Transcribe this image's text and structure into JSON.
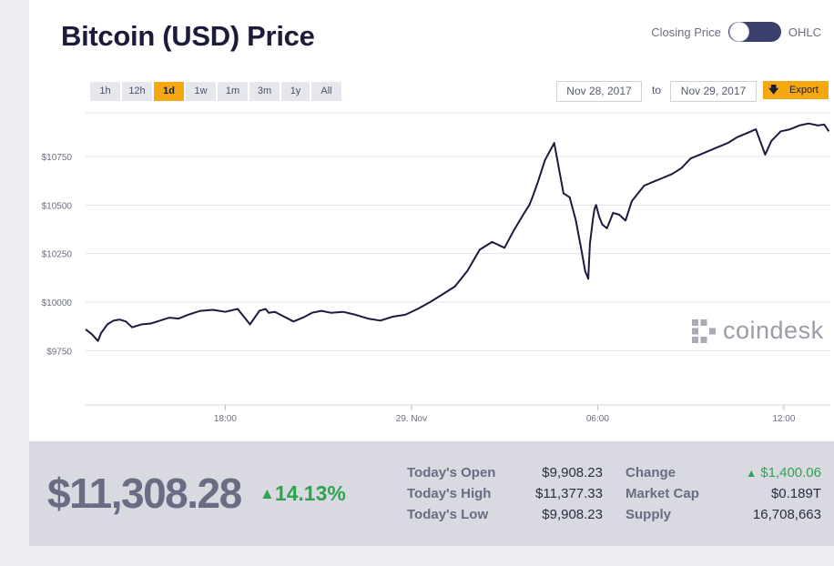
{
  "title": "Bitcoin (USD) Price",
  "toggle": {
    "left_label": "Closing Price",
    "right_label": "OHLC"
  },
  "ranges": [
    "1h",
    "12h",
    "1d",
    "1w",
    "1m",
    "3m",
    "1y",
    "All"
  ],
  "active_range": "1d",
  "date_from": "Nov 28, 2017",
  "date_to_label": "to",
  "date_to": "Nov 29, 2017",
  "export_label": "Export",
  "watermark": "coindesk",
  "colors": {
    "accent": "#f5a70f",
    "line": "#1a1b3d",
    "positive": "#2ea44f"
  },
  "chart_data": {
    "type": "line",
    "y_ticks": [
      "$9750",
      "$10000",
      "$10250",
      "$10500",
      "$10750"
    ],
    "y_tick_values": [
      9750,
      10000,
      10250,
      10500,
      10750
    ],
    "x_ticks": [
      "18:00",
      "29. Nov",
      "06:00",
      "12:00"
    ],
    "x_tick_hours": [
      18,
      24,
      30,
      36
    ],
    "x_range_hours": [
      13.5,
      37.5
    ],
    "ylim": [
      9500,
      11000
    ],
    "series": [
      {
        "x": [
          13.5,
          13.7,
          13.9,
          14.0,
          14.2,
          14.4,
          14.6,
          14.8,
          15.0,
          15.3,
          15.6,
          15.9,
          16.2,
          16.5,
          16.8,
          17.2,
          17.6,
          18.0,
          18.4,
          18.8,
          19.1,
          19.3,
          19.4,
          19.6,
          19.9,
          20.2,
          20.5,
          20.8,
          21.1,
          21.4,
          21.8,
          22.2,
          22.6,
          23.0,
          23.4,
          23.8,
          24.2,
          24.6,
          25.0,
          25.4,
          25.8,
          26.2,
          26.6,
          27.0,
          27.3,
          27.6,
          27.8,
          27.9,
          28.1,
          28.3,
          28.6,
          28.9,
          29.1,
          29.3,
          29.5,
          29.6,
          29.7,
          29.75,
          29.85,
          29.9,
          29.95,
          30.05,
          30.15,
          30.3,
          30.5,
          30.7,
          30.9,
          31.1,
          31.3,
          31.5,
          31.8,
          32.1,
          32.4,
          32.7,
          33.0,
          33.3,
          33.6,
          33.9,
          34.2,
          34.5,
          34.8,
          35.1,
          35.4,
          35.6,
          35.9,
          36.2,
          36.5,
          36.8,
          37.1,
          37.3,
          37.45
        ],
        "y": [
          9860,
          9835,
          9800,
          9840,
          9885,
          9905,
          9910,
          9900,
          9870,
          9885,
          9890,
          9905,
          9920,
          9915,
          9935,
          9955,
          9960,
          9950,
          9965,
          9885,
          9955,
          9965,
          9945,
          9950,
          9925,
          9900,
          9920,
          9945,
          9955,
          9945,
          9950,
          9935,
          9915,
          9905,
          9925,
          9935,
          9965,
          10000,
          10040,
          10080,
          10160,
          10270,
          10310,
          10280,
          10370,
          10450,
          10500,
          10540,
          10630,
          10730,
          10820,
          10560,
          10540,
          10420,
          10250,
          10160,
          10120,
          10300,
          10430,
          10480,
          10500,
          10440,
          10400,
          10380,
          10460,
          10450,
          10420,
          10520,
          10560,
          10600,
          10620,
          10640,
          10660,
          10690,
          10740,
          10760,
          10780,
          10800,
          10820,
          10850,
          10870,
          10890,
          10760,
          10830,
          10880,
          10890,
          10910,
          10920,
          10910,
          10915,
          10880
        ]
      }
    ]
  },
  "stats": {
    "price": "$11,308.28",
    "change_pct": "14.13%",
    "up_arrow": "▲",
    "rows": [
      {
        "label": "Today's Open",
        "value": "$9,908.23",
        "label2": "Change",
        "value2": "$1,400.06"
      },
      {
        "label": "Today's High",
        "value": "$11,377.33",
        "label2": "Market Cap",
        "value2": "$0.189T"
      },
      {
        "label": "Today's Low",
        "value": "$9,908.23",
        "label2": "Supply",
        "value2": "16,708,663"
      }
    ]
  }
}
